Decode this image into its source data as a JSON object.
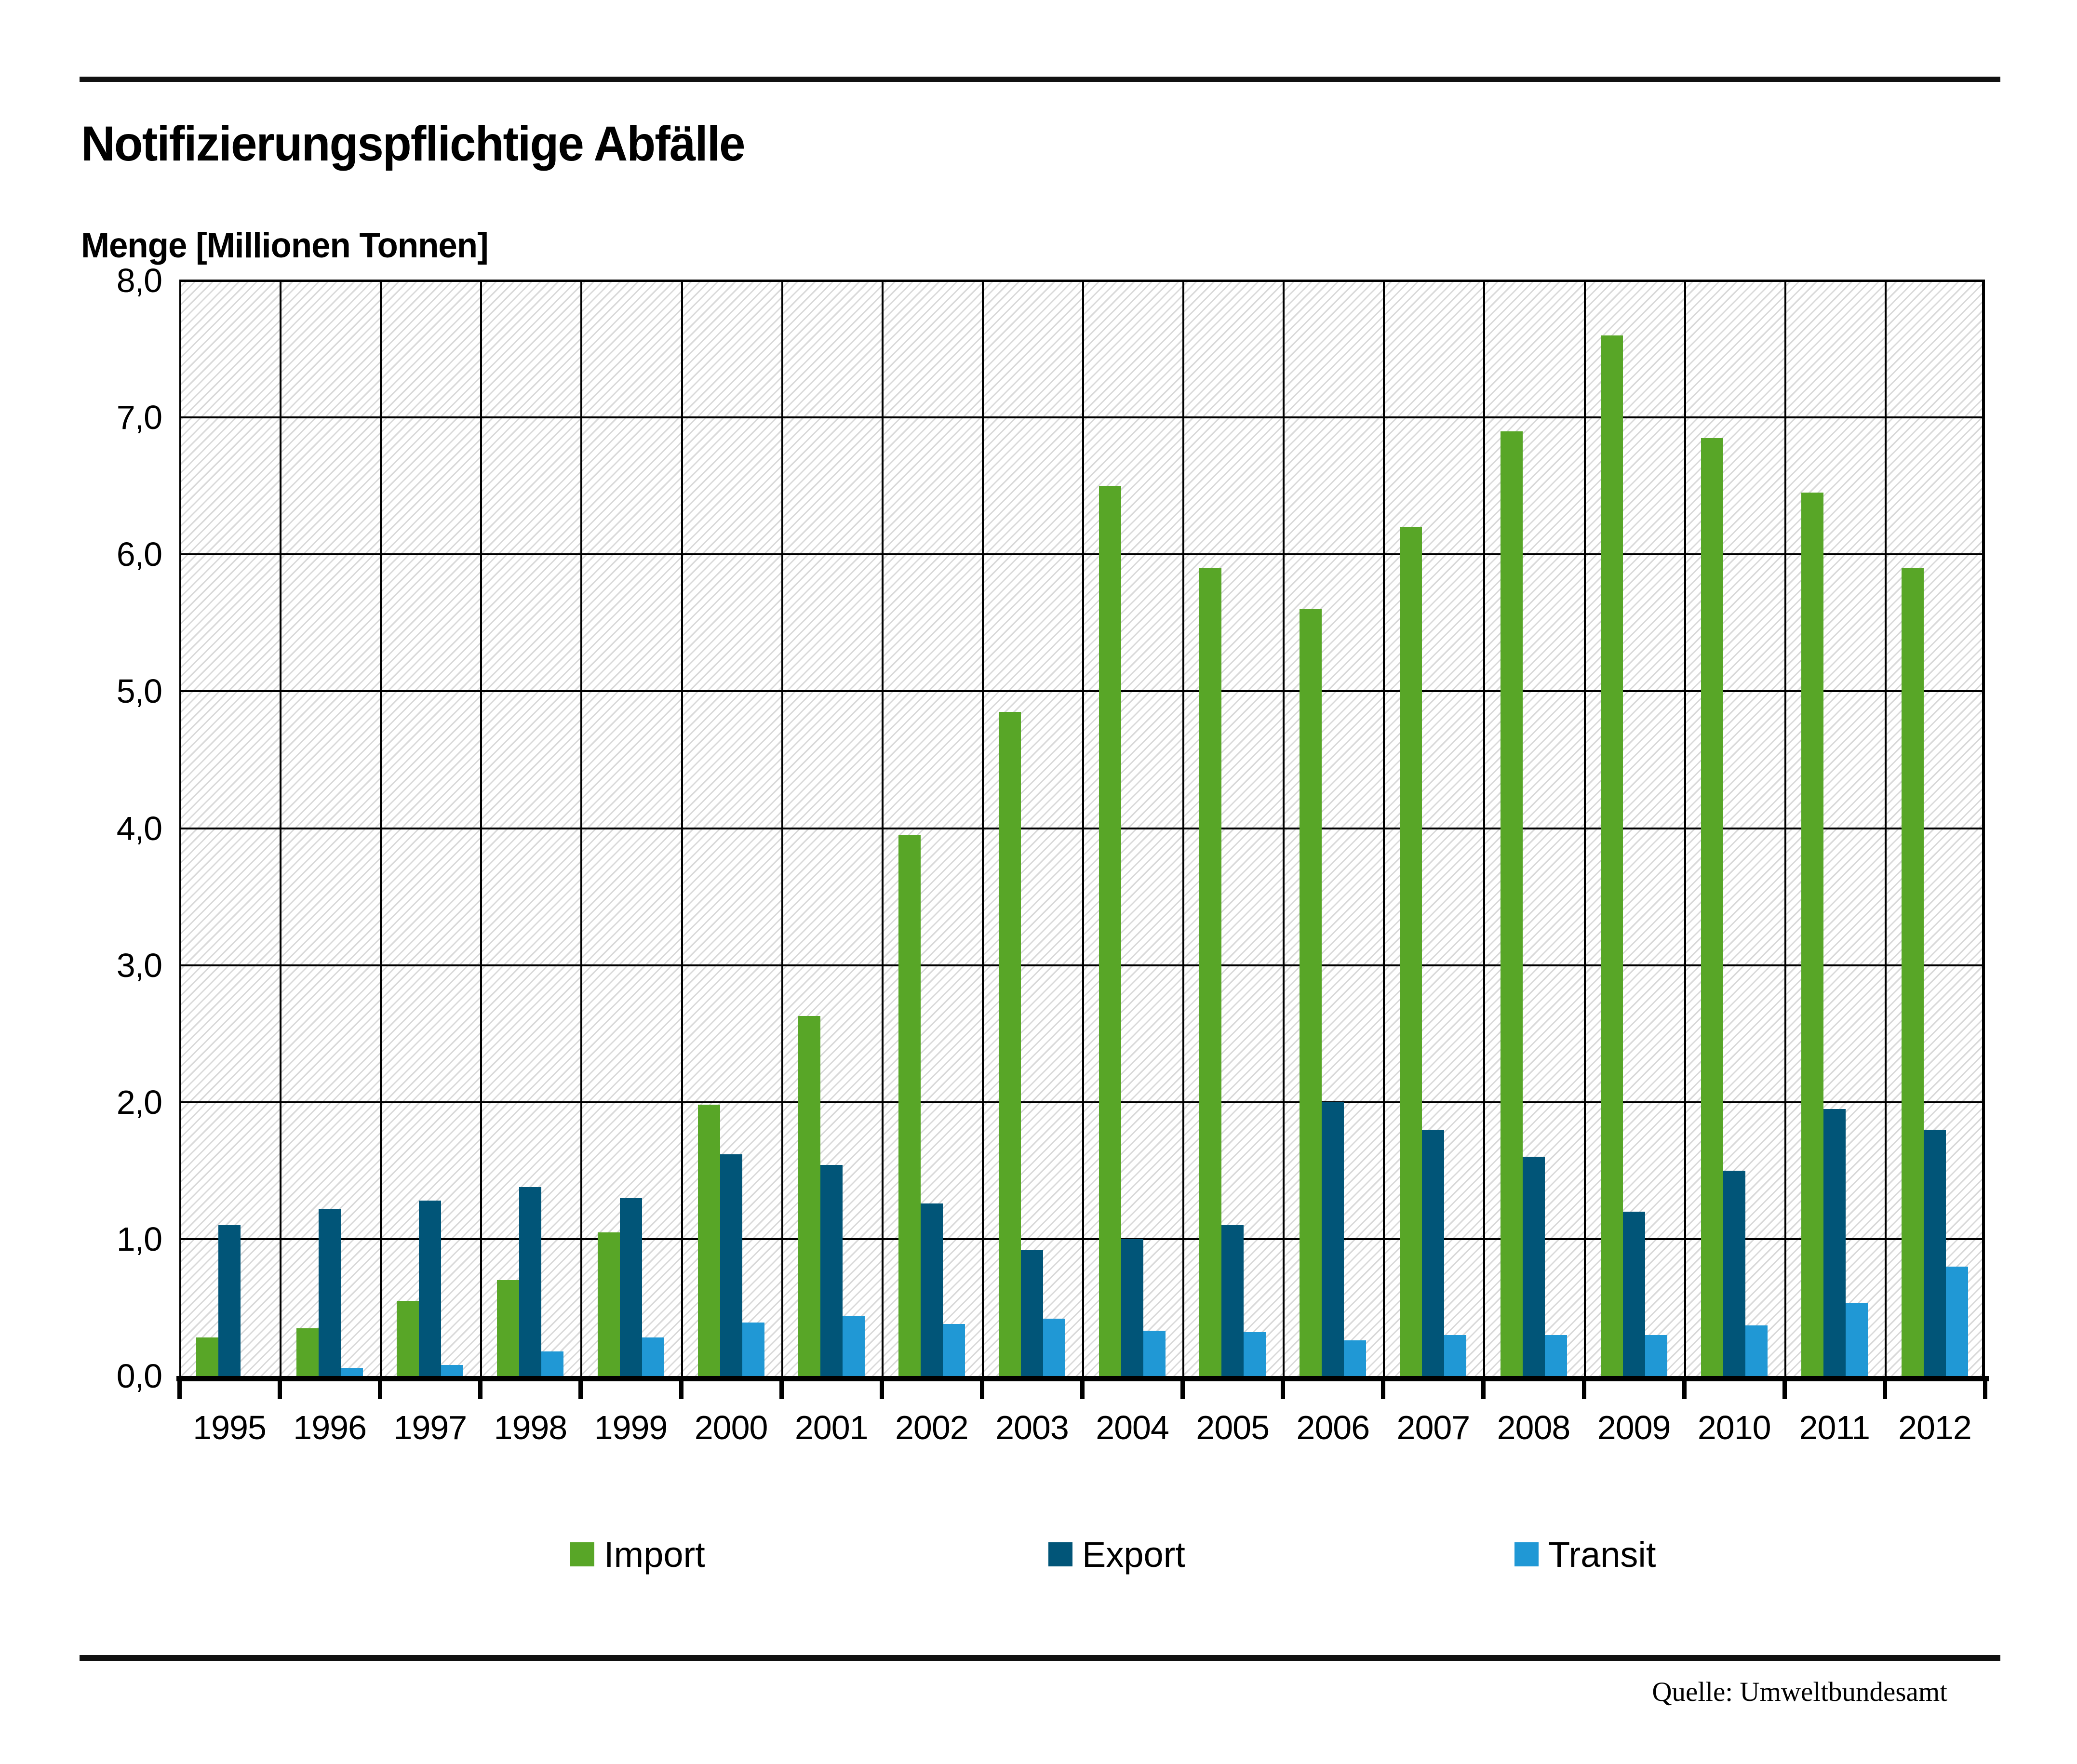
{
  "title": "Notifizierungspflichtige Abfälle",
  "subtitle": "Menge [Millionen Tonnen]",
  "source": "Quelle: Umweltbundesamt",
  "colors": {
    "import_green": "#58a627",
    "export_dark_blue": "#015578",
    "transit_light_blue": "#2098d5",
    "hatch_gray": "#d9d9d9",
    "line_black": "#000000"
  },
  "chart_data": {
    "type": "bar",
    "title": "Notifizierungspflichtige Abfälle",
    "xlabel": "",
    "ylabel": "Menge [Millionen Tonnen]",
    "categories": [
      "1995",
      "1996",
      "1997",
      "1998",
      "1999",
      "2000",
      "2001",
      "2002",
      "2003",
      "2004",
      "2005",
      "2006",
      "2007",
      "2008",
      "2009",
      "2010",
      "2011",
      "2012"
    ],
    "series": [
      {
        "name": "Import",
        "color": "#58a627",
        "values": [
          0.28,
          0.35,
          0.55,
          0.7,
          1.05,
          1.98,
          2.63,
          3.95,
          4.85,
          6.5,
          5.9,
          5.6,
          6.2,
          6.9,
          7.6,
          6.85,
          6.45,
          5.9
        ]
      },
      {
        "name": "Export",
        "color": "#015578",
        "values": [
          1.1,
          1.22,
          1.28,
          1.38,
          1.3,
          1.62,
          1.54,
          1.26,
          0.92,
          1.0,
          1.1,
          2.0,
          1.8,
          1.6,
          1.2,
          1.5,
          1.95,
          1.8
        ]
      },
      {
        "name": "Transit",
        "color": "#2098d5",
        "values": [
          0.0,
          0.06,
          0.08,
          0.18,
          0.28,
          0.39,
          0.44,
          0.38,
          0.42,
          0.33,
          0.32,
          0.26,
          0.3,
          0.3,
          0.3,
          0.37,
          0.53,
          0.8
        ]
      }
    ],
    "ylim": [
      0,
      8
    ],
    "ytick_step": 1.0,
    "ytick_labels": [
      "0,0",
      "1,0",
      "2,0",
      "3,0",
      "4,0",
      "5,0",
      "6,0",
      "7,0",
      "8,0"
    ],
    "grid": true,
    "hatch_background": true,
    "legend_position": "bottom"
  }
}
